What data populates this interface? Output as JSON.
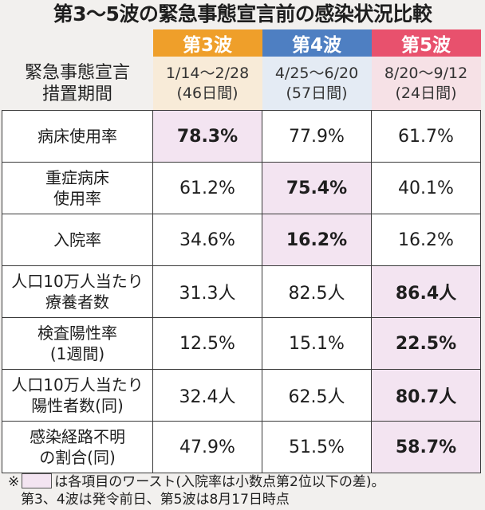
{
  "title": "第3〜5波の緊急事態宣言前の感染状況比較",
  "waves": [
    {
      "name": "第3波",
      "color": "#ef9f2a",
      "period": "1/14〜2/28",
      "duration": "(46日間)"
    },
    {
      "name": "第4波",
      "color": "#4e7fc2",
      "period": "4/25〜6/20",
      "duration": "(57日間)"
    },
    {
      "name": "第5波",
      "color": "#e8516d",
      "period": "8/20〜9/12",
      "duration": "(24日間)"
    }
  ],
  "period_label": {
    "line1": "緊急事態宣言",
    "line2": "措置期間"
  },
  "rows": [
    {
      "label1": "病床使用率",
      "label2": "",
      "values": [
        "78.3%",
        "77.9%",
        "61.7%"
      ],
      "worst": [
        true,
        false,
        false
      ]
    },
    {
      "label1": "重症病床",
      "label2": "使用率",
      "values": [
        "61.2%",
        "75.4%",
        "40.1%"
      ],
      "worst": [
        false,
        true,
        false
      ]
    },
    {
      "label1": "入院率",
      "label2": "",
      "values": [
        "34.6%",
        "16.2%",
        "16.2%"
      ],
      "worst": [
        false,
        true,
        false
      ]
    },
    {
      "label1": "人口10万人当たり",
      "label2": "療養者数",
      "values": [
        "31.3人",
        "82.5人",
        "86.4人"
      ],
      "worst": [
        false,
        false,
        true
      ]
    },
    {
      "label1": "検査陽性率",
      "label2": "(1週間)",
      "values": [
        "12.5%",
        "15.1%",
        "22.5%"
      ],
      "worst": [
        false,
        false,
        true
      ]
    },
    {
      "label1": "人口10万人当たり",
      "label2": "陽性者数(同)",
      "values": [
        "32.4人",
        "62.5人",
        "80.7人"
      ],
      "worst": [
        false,
        false,
        true
      ]
    },
    {
      "label1": "感染経路不明",
      "label2": "の割合(同)",
      "values": [
        "47.9%",
        "51.5%",
        "58.7%"
      ],
      "worst": [
        false,
        false,
        true
      ]
    }
  ],
  "highlight_color": "#f3e4f1",
  "notes": {
    "mark": "※",
    "line1_text": "は各項目のワースト(入院率は小数点第2位以下の差)。",
    "line2_text": "第3、4波は発令前日、第5波は8月17日時点"
  }
}
